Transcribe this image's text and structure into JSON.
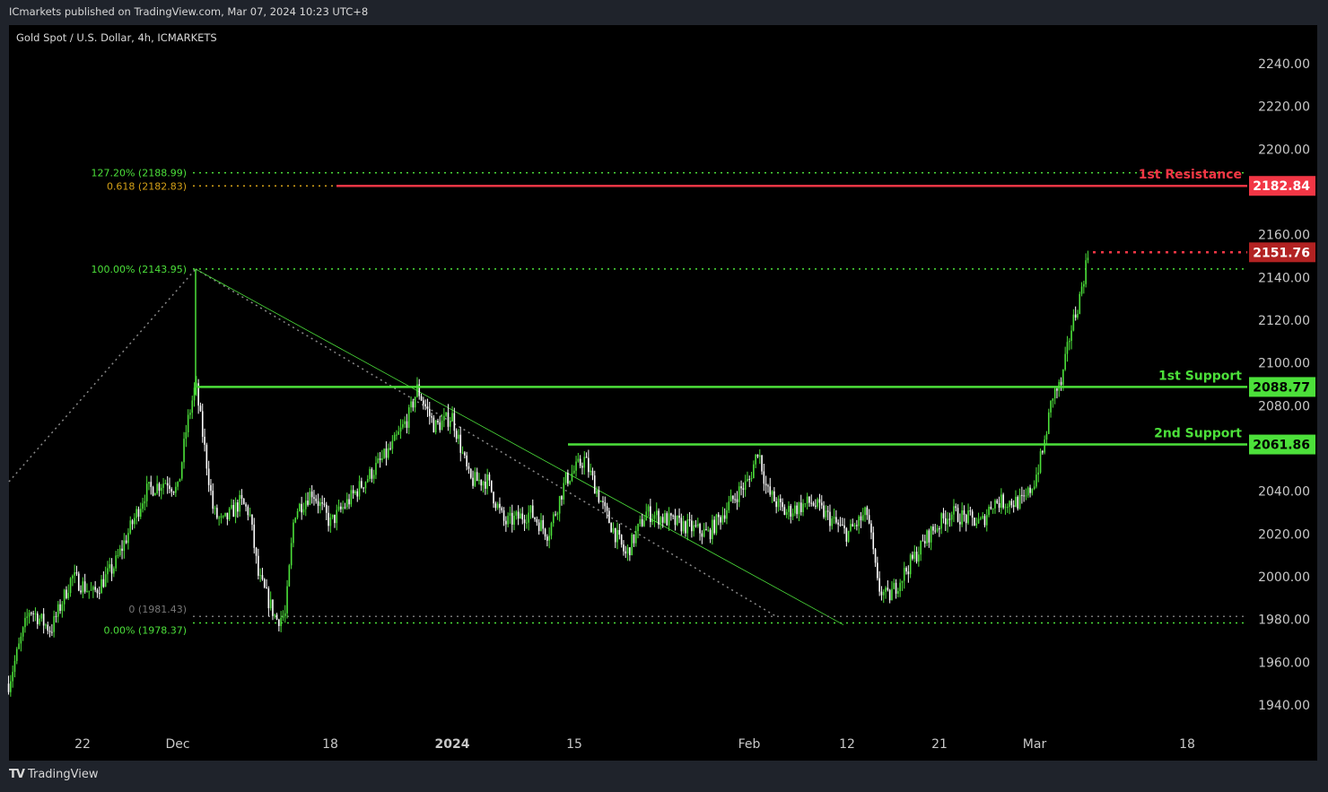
{
  "header": {
    "published": "ICmarkets published on TradingView.com, Mar 07, 2024 10:23 UTC+8"
  },
  "footer": {
    "brand": "TradingView",
    "logo_icon": "tradingview-logo-icon"
  },
  "chart_data": {
    "type": "candlestick",
    "title": "Gold Spot / U.S. Dollar, 4h, ICMARKETS",
    "ylim": [
      1930,
      2250
    ],
    "y_ticks": [
      "2240.00",
      "2220.00",
      "2200.00",
      "2160.00",
      "2140.00",
      "2120.00",
      "2100.00",
      "2080.00",
      "2040.00",
      "2020.00",
      "2000.00",
      "1980.00",
      "1960.00",
      "1940.00"
    ],
    "x_ticks": [
      {
        "label": "22",
        "date": "2023-11-22"
      },
      {
        "label": "Dec",
        "date": "2023-12-01"
      },
      {
        "label": "18",
        "date": "2023-12-18"
      },
      {
        "label": "2024",
        "date": "2024-01-01",
        "bold": true
      },
      {
        "label": "15",
        "date": "2024-01-15"
      },
      {
        "label": "Feb",
        "date": "2024-02-01"
      },
      {
        "label": "12",
        "date": "2024-02-12"
      },
      {
        "label": "21",
        "date": "2024-02-21"
      },
      {
        "label": "Mar",
        "date": "2024-03-01"
      },
      {
        "label": "18",
        "date": "2024-03-18"
      }
    ],
    "price_path": [
      [
        "2023-11-15",
        1950
      ],
      [
        "2023-11-17",
        1985
      ],
      [
        "2023-11-19",
        1975
      ],
      [
        "2023-11-21",
        2000
      ],
      [
        "2023-11-23",
        1992
      ],
      [
        "2023-11-25",
        2005
      ],
      [
        "2023-11-28",
        2040
      ],
      [
        "2023-11-30",
        2045
      ],
      [
        "2023-12-01",
        2040
      ],
      [
        "2023-12-02",
        2070
      ],
      [
        "2023-12-03",
        2090
      ],
      [
        "2023-12-04",
        2060
      ],
      [
        "2023-12-05",
        2030
      ],
      [
        "2023-12-06",
        2025
      ],
      [
        "2023-12-08",
        2035
      ],
      [
        "2023-12-09",
        2030
      ],
      [
        "2023-12-10",
        2000
      ],
      [
        "2023-12-12",
        1980
      ],
      [
        "2023-12-13",
        1982
      ],
      [
        "2023-12-14",
        2030
      ],
      [
        "2023-12-16",
        2040
      ],
      [
        "2023-12-18",
        2025
      ],
      [
        "2023-12-21",
        2040
      ],
      [
        "2023-12-23",
        2050
      ],
      [
        "2023-12-25",
        2060
      ],
      [
        "2023-12-27",
        2075
      ],
      [
        "2023-12-28",
        2088
      ],
      [
        "2023-12-30",
        2070
      ],
      [
        "2024-01-01",
        2075
      ],
      [
        "2024-01-03",
        2045
      ],
      [
        "2024-01-05",
        2045
      ],
      [
        "2024-01-07",
        2025
      ],
      [
        "2024-01-10",
        2030
      ],
      [
        "2024-01-12",
        2020
      ],
      [
        "2024-01-14",
        2045
      ],
      [
        "2024-01-16",
        2055
      ],
      [
        "2024-01-18",
        2030
      ],
      [
        "2024-01-20",
        2010
      ],
      [
        "2024-01-22",
        2030
      ],
      [
        "2024-01-25",
        2025
      ],
      [
        "2024-01-28",
        2020
      ],
      [
        "2024-01-31",
        2040
      ],
      [
        "2024-02-01",
        2045
      ],
      [
        "2024-02-02",
        2060
      ],
      [
        "2024-02-03",
        2040
      ],
      [
        "2024-02-05",
        2030
      ],
      [
        "2024-02-08",
        2035
      ],
      [
        "2024-02-12",
        2020
      ],
      [
        "2024-02-14",
        2030
      ],
      [
        "2024-02-15",
        1995
      ],
      [
        "2024-02-16",
        1990
      ],
      [
        "2024-02-18",
        2005
      ],
      [
        "2024-02-20",
        2020
      ],
      [
        "2024-02-22",
        2030
      ],
      [
        "2024-02-25",
        2025
      ],
      [
        "2024-02-26",
        2035
      ],
      [
        "2024-02-29",
        2035
      ],
      [
        "2024-03-01",
        2045
      ],
      [
        "2024-03-02",
        2060
      ],
      [
        "2024-03-03",
        2085
      ],
      [
        "2024-03-04",
        2090
      ],
      [
        "2024-03-05",
        2115
      ],
      [
        "2024-03-06",
        2130
      ],
      [
        "2024-03-07",
        2151.76
      ]
    ],
    "spike_high": {
      "date": "2023-12-03",
      "price": 2143.95
    },
    "levels": [
      {
        "name": "1st Resistance",
        "price": 2182.84,
        "color": "#f23645",
        "badge": "2182.84"
      },
      {
        "name": "1st Support",
        "price": 2088.77,
        "color": "#4ce03a",
        "badge": "2088.77"
      },
      {
        "name": "2nd Support",
        "price": 2061.86,
        "color": "#4ce03a",
        "badge": "2061.86"
      }
    ],
    "last_price": {
      "price": 2151.76,
      "badge": "2151.76",
      "color": "#b22222"
    },
    "fib": [
      {
        "label": "127.20% (2188.99)",
        "price": 2188.99,
        "color": "#4ce03a"
      },
      {
        "label": "0.618 (2182.83)",
        "price": 2182.83,
        "color": "#d4a017"
      },
      {
        "label": "100.00% (2143.95)",
        "price": 2143.95,
        "color": "#4ce03a"
      },
      {
        "label": "0 (1981.43)",
        "price": 1981.43,
        "color": "#777777"
      },
      {
        "label": "0.00% (1978.37)",
        "price": 1978.37,
        "color": "#4ce03a"
      }
    ],
    "colors": {
      "up": "#4ce03a",
      "down": "#ffffff",
      "background": "#000000"
    }
  }
}
